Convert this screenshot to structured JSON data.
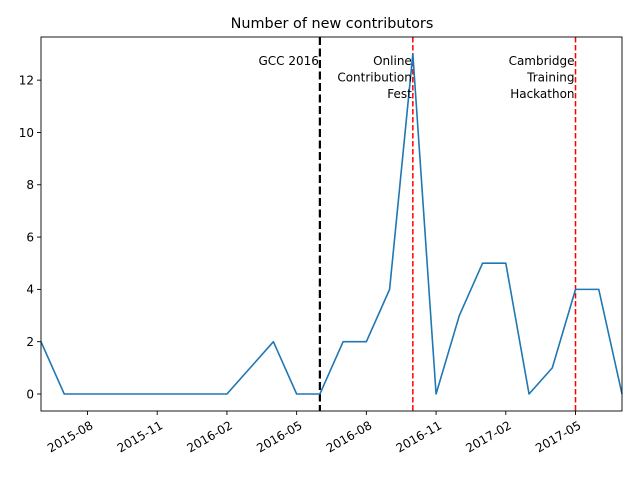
{
  "chart_data": {
    "type": "line",
    "title": "Number of new contributors",
    "xlabel": "",
    "ylabel": "",
    "x": [
      "2015-06",
      "2015-07",
      "2015-08",
      "2015-09",
      "2015-10",
      "2015-11",
      "2015-12",
      "2016-01",
      "2016-02",
      "2016-03",
      "2016-04",
      "2016-05",
      "2016-06",
      "2016-07",
      "2016-08",
      "2016-09",
      "2016-10",
      "2016-11",
      "2016-12",
      "2017-01",
      "2017-02",
      "2017-03",
      "2017-04",
      "2017-05",
      "2017-06",
      "2017-07"
    ],
    "series": [
      {
        "values": [
          2,
          0,
          0,
          0,
          0,
          0,
          0,
          0,
          0,
          1,
          2,
          0,
          0,
          2,
          2,
          4,
          13,
          0,
          3,
          5,
          5,
          0,
          1,
          4,
          4,
          0
        ],
        "color": "#1f77b4"
      }
    ],
    "xlim": [
      "2015-06",
      "2017-07"
    ],
    "ylim": [
      -0.65,
      13.65
    ],
    "x_ticks": [
      {
        "date": "2015-08",
        "label": "2015-08"
      },
      {
        "date": "2015-11",
        "label": "2015-11"
      },
      {
        "date": "2016-02",
        "label": "2016-02"
      },
      {
        "date": "2016-05",
        "label": "2016-05"
      },
      {
        "date": "2016-08",
        "label": "2016-08"
      },
      {
        "date": "2016-11",
        "label": "2016-11"
      },
      {
        "date": "2017-02",
        "label": "2017-02"
      },
      {
        "date": "2017-05",
        "label": "2017-05"
      }
    ],
    "y_ticks": [
      0,
      2,
      4,
      6,
      8,
      10,
      12
    ],
    "grid": false,
    "event_lines": [
      {
        "date": "2016-06",
        "color": "#000000",
        "style": "dashed-thick",
        "label_lines": [
          "GCC 2016"
        ]
      },
      {
        "date": "2016-10",
        "color": "#ff0000",
        "style": "dashed",
        "label_lines": [
          "Online",
          "Contribution",
          "Fest"
        ]
      },
      {
        "date": "2017-05",
        "color": "#ff0000",
        "style": "dashed",
        "label_lines": [
          "Cambridge",
          "Training",
          "Hackathon"
        ]
      }
    ]
  }
}
